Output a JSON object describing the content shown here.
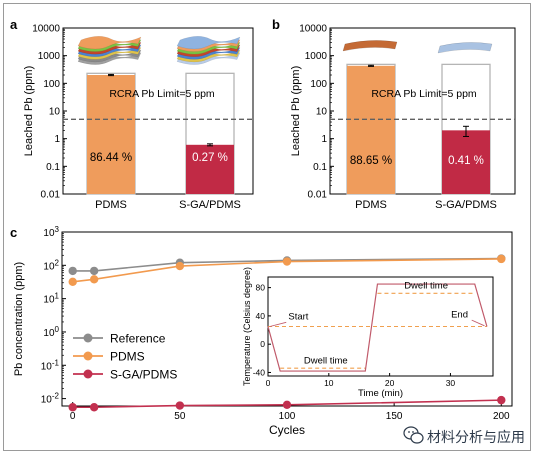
{
  "colors": {
    "pdms_bar": "#ef9c5c",
    "sga_bar": "#c12a45",
    "limit_line": "#606060",
    "reference": "#8c8c8c",
    "pdms": "#f29a4e",
    "sga": "#c2304f",
    "inset_line": "#c05a6a",
    "inset_dashed": "#f0a04f",
    "watermark": "#2d3a4a"
  },
  "icons": {
    "wechat": "wechat-icon",
    "layered_stack_a": "multilayer-film-stack",
    "single_film_b": "single-film-sheet"
  },
  "watermark": "材料分析与应用",
  "panels": {
    "a": {
      "letter": "a"
    },
    "b": {
      "letter": "b"
    },
    "c": {
      "letter": "c"
    }
  },
  "chart_data": [
    {
      "id": "a",
      "type": "bar",
      "ylabel": "Leached Pb (ppm)",
      "yscale": "log",
      "ylim": [
        0.01,
        10000
      ],
      "yticks": [
        "0.01",
        "0.1",
        "1",
        "10",
        "100",
        "1000",
        "10000"
      ],
      "categories": [
        "PDMS",
        "S-GA/PDMS"
      ],
      "values": [
        200,
        0.6
      ],
      "errors": [
        10,
        0.05
      ],
      "capacity": 230,
      "bar_labels": [
        "86.44 %",
        "0.27 %"
      ],
      "limit": {
        "value": 5,
        "label": "RCRA Pb Limit=5 ppm"
      }
    },
    {
      "id": "b",
      "type": "bar",
      "ylabel": "Leached Pb (ppm)",
      "yscale": "log",
      "ylim": [
        0.01,
        10000
      ],
      "yticks": [
        "0.01",
        "0.1",
        "1",
        "10",
        "100",
        "1000",
        "10000"
      ],
      "categories": [
        "PDMS",
        "S-GA/PDMS"
      ],
      "values": [
        430,
        2
      ],
      "errors": [
        20,
        0.8
      ],
      "capacity": 485,
      "bar_labels": [
        "88.65 %",
        "0.41 %"
      ],
      "limit": {
        "value": 5,
        "label": "RCRA Pb Limit=5 ppm"
      }
    },
    {
      "id": "c",
      "type": "line",
      "xlabel": "Cycles",
      "ylabel": "Pb concentration (ppm)",
      "yscale": "log",
      "xlim": [
        -5,
        205
      ],
      "ylim": [
        0.006,
        1000
      ],
      "xticks": [
        "0",
        "50",
        "100",
        "150",
        "200"
      ],
      "yticks": [
        "10^-2",
        "10^-1",
        "10^0",
        "10^1",
        "10^2",
        "10^3"
      ],
      "x": [
        0,
        10,
        50,
        100,
        200
      ],
      "series": [
        {
          "name": "Reference",
          "values": [
            68,
            68,
            120,
            140,
            160
          ]
        },
        {
          "name": "PDMS",
          "values": [
            32,
            38,
            95,
            130,
            155
          ]
        },
        {
          "name": "S-GA/PDMS",
          "values": [
            0.0055,
            0.0055,
            0.0062,
            0.0065,
            0.009
          ]
        }
      ],
      "inset": {
        "type": "line",
        "xlabel": "Time (min)",
        "ylabel": "Temperature (Celsius degree)",
        "xlim": [
          0,
          37
        ],
        "ylim": [
          -45,
          95
        ],
        "xticks": [
          "0",
          "10",
          "20",
          "30"
        ],
        "yticks": [
          "-40",
          "0",
          "40",
          "80"
        ],
        "profile": {
          "x": [
            0,
            2,
            16,
            18,
            34,
            36
          ],
          "y": [
            25,
            -38,
            -38,
            85,
            85,
            25
          ]
        },
        "dashed": [
          {
            "x": [
              0,
              36
            ],
            "y": [
              25,
              25
            ]
          },
          {
            "x": [
              2,
              16
            ],
            "y": [
              -34,
              -34
            ]
          },
          {
            "x": [
              18,
              34
            ],
            "y": [
              72,
              72
            ]
          }
        ],
        "annotations": [
          {
            "text": "Start",
            "x": 5,
            "y": 35
          },
          {
            "text": "Dwell time",
            "x": 9.5,
            "y": -27
          },
          {
            "text": "Dwell time",
            "x": 26,
            "y": 79
          },
          {
            "text": "End",
            "x": 31.5,
            "y": 38
          }
        ]
      }
    }
  ]
}
